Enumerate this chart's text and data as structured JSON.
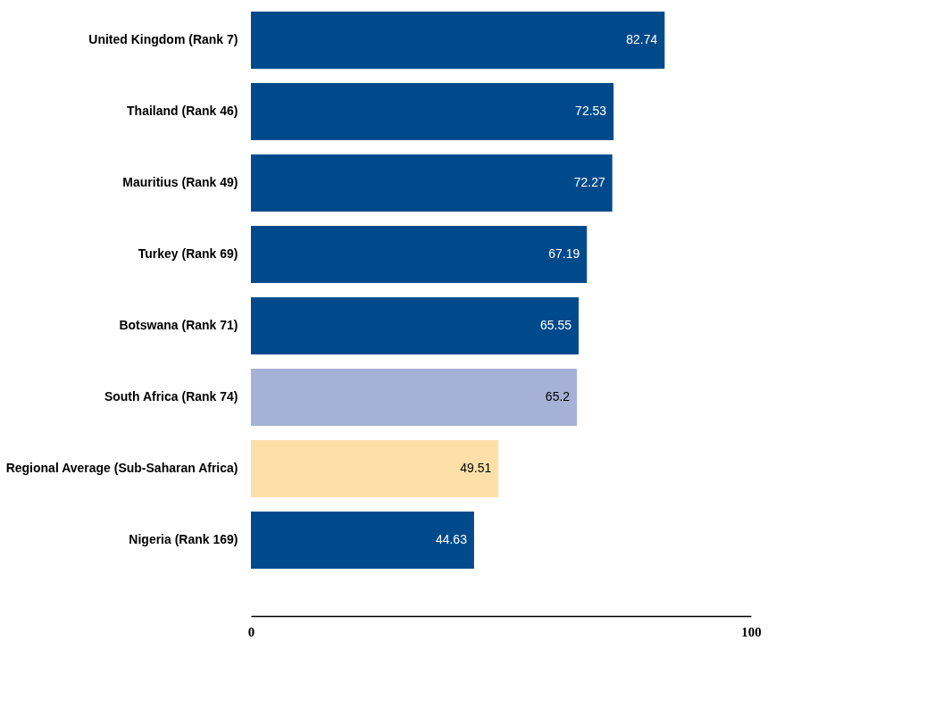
{
  "chart_data": {
    "type": "bar",
    "orientation": "horizontal",
    "categories": [
      "United Kingdom (Rank 7)",
      "Thailand (Rank 46)",
      "Mauritius (Rank 49)",
      "Turkey (Rank 69)",
      "Botswana (Rank 71)",
      "South Africa (Rank 74)",
      "Regional Average (Sub-Saharan Africa)",
      "Nigeria (Rank 169)"
    ],
    "values": [
      82.74,
      72.53,
      72.27,
      67.19,
      65.55,
      65.2,
      49.51,
      44.63
    ],
    "colors": [
      "#004a8c",
      "#004a8c",
      "#004a8c",
      "#004a8c",
      "#004a8c",
      "#a5b1d6",
      "#fde0a8",
      "#004a8c"
    ],
    "xlim": [
      0,
      100
    ],
    "xticks": [
      0,
      100
    ],
    "data_labels": true
  }
}
